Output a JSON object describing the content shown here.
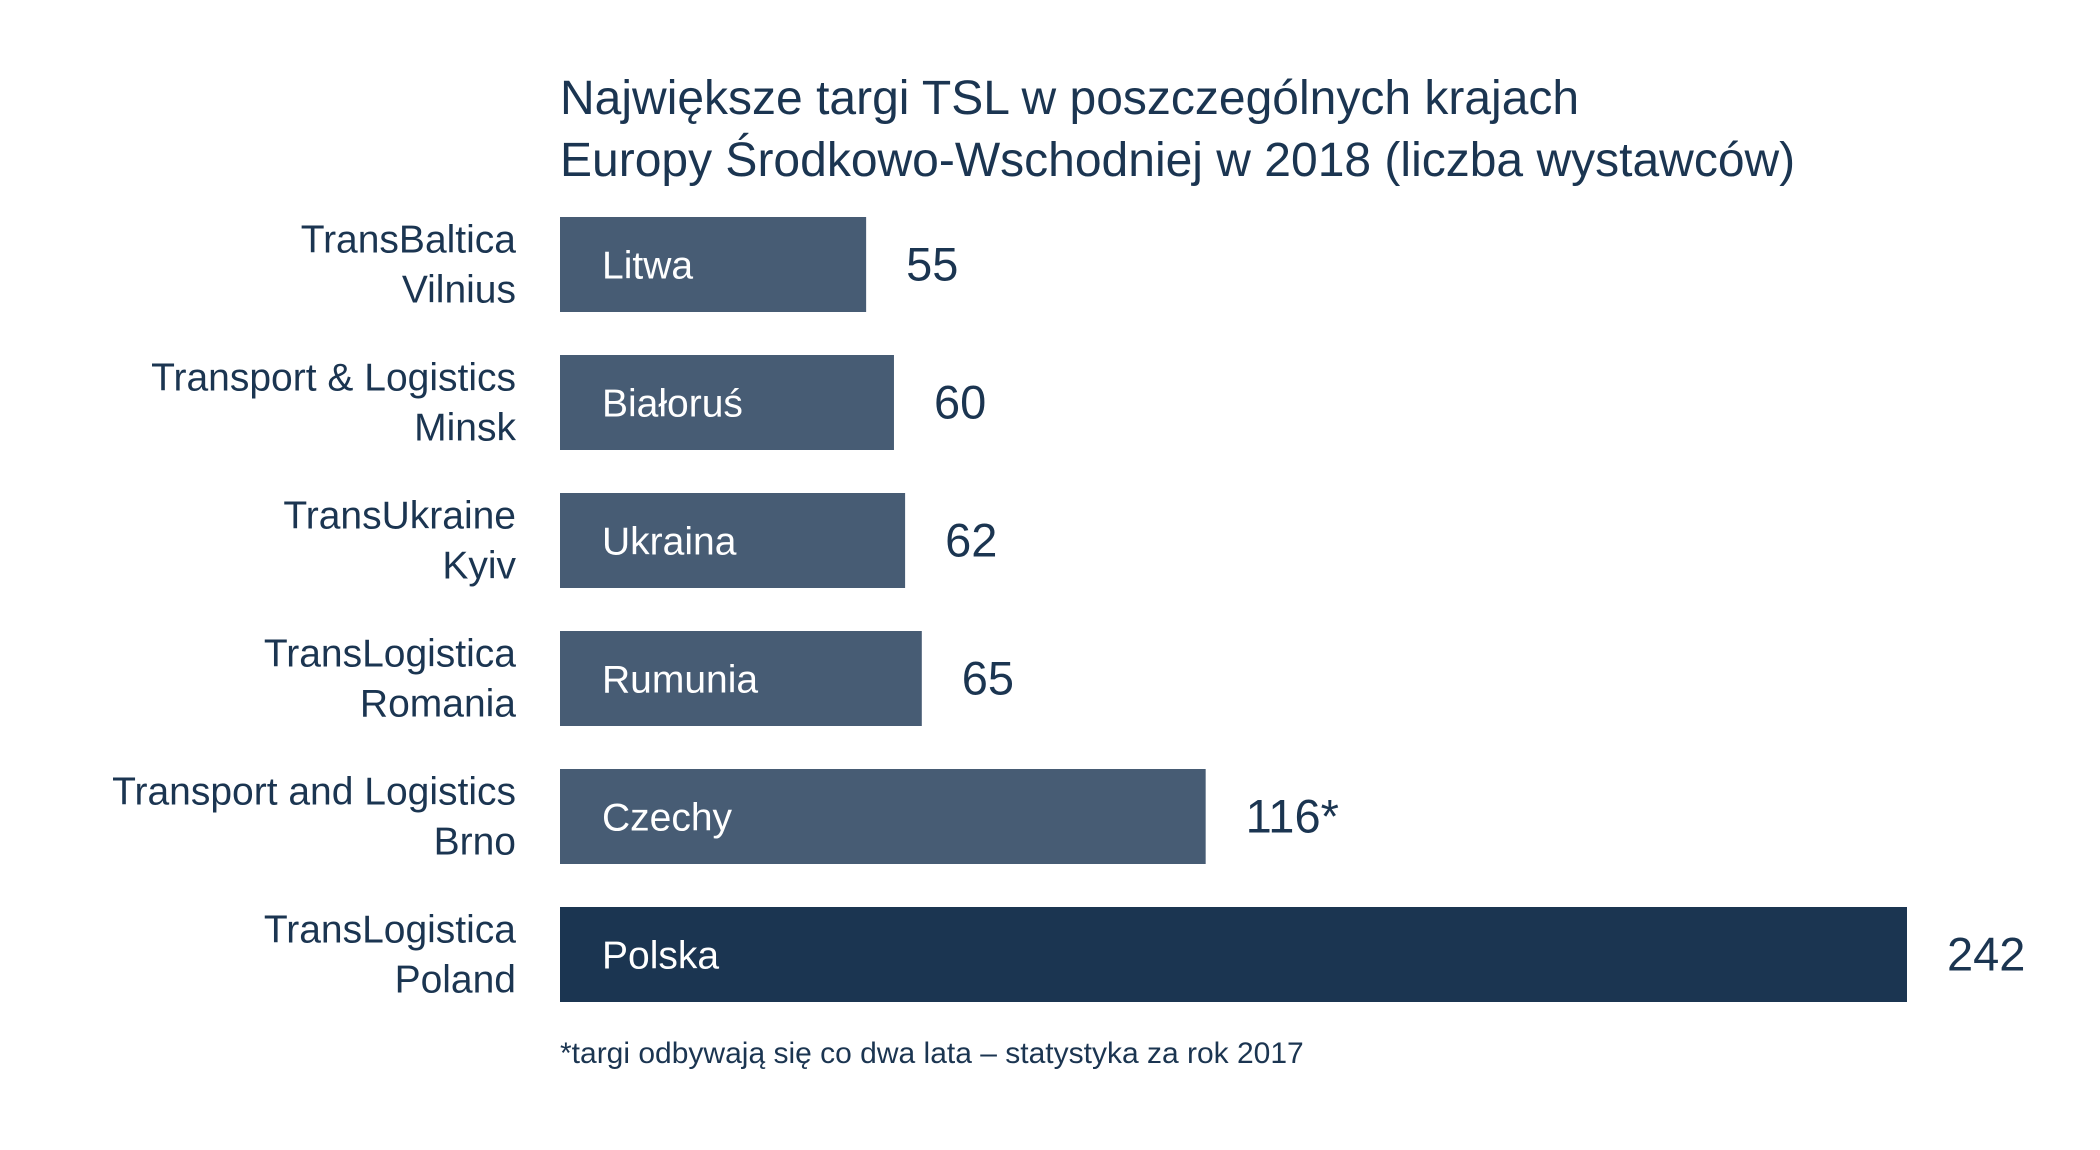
{
  "chart_data": {
    "type": "bar",
    "orientation": "horizontal",
    "title_lines": [
      "Największe targi TSL w poszczególnych krajach",
      "Europy Środkowo-Wschodniej w 2018 (liczba wystawców)"
    ],
    "categories": [
      [
        "TransBaltica",
        "Vilnius"
      ],
      [
        "Transport & Logistics",
        "Minsk"
      ],
      [
        "TransUkraine",
        "Kyiv"
      ],
      [
        "TransLogistica",
        "Romania"
      ],
      [
        "Transport and Logistics",
        "Brno"
      ],
      [
        "TransLogistica",
        "Poland"
      ]
    ],
    "bar_labels": [
      "Litwa",
      "Białoruś",
      "Ukraina",
      "Rumunia",
      "Czechy",
      "Polska"
    ],
    "values": [
      55,
      60,
      62,
      65,
      116,
      242
    ],
    "value_labels": [
      "55",
      "60",
      "62",
      "65",
      "116*",
      "242"
    ],
    "colors": [
      "#475c74",
      "#475c74",
      "#475c74",
      "#475c74",
      "#475c74",
      "#1b3551"
    ],
    "xlim": [
      0,
      242
    ],
    "grid": false,
    "legend": "none",
    "footnote": "*targi odbywają się co dwa lata – statystyka za rok 2017",
    "text_color": "#1b3551"
  }
}
